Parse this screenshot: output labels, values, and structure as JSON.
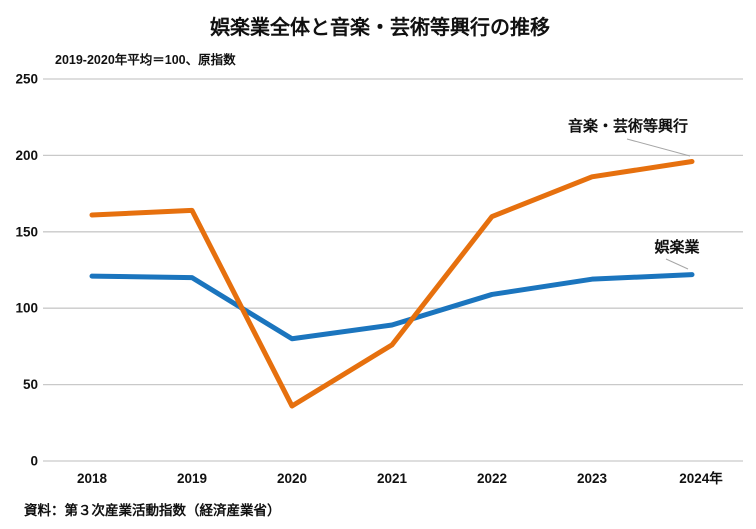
{
  "title": "娯楽業全体と音楽・芸術等興行の推移",
  "subtitle": "2019-2020年平均＝100、原指数",
  "source": "資料：第３次産業活動指数（経済産業省）",
  "colors": {
    "entertainment_line": "#1B75BE",
    "music_arts_line": "#E6700E",
    "gridline": "#C9C9C9",
    "leader_line": "#A6A6A6",
    "text": "#111111"
  },
  "chart_data": {
    "type": "line",
    "categories": [
      "2018",
      "2019",
      "2020",
      "2021",
      "2022",
      "2023",
      "2024年"
    ],
    "series": [
      {
        "id": "entertainment",
        "name": "娯楽業",
        "color": "#1B75BE",
        "values": [
          121,
          120,
          80,
          89,
          109,
          119,
          122
        ]
      },
      {
        "id": "music-arts",
        "name": "音楽・芸術等興行",
        "color": "#E6700E",
        "values": [
          161,
          164,
          36,
          76,
          160,
          186,
          196
        ]
      }
    ],
    "title": "娯楽業全体と音楽・芸術等興行の推移",
    "subtitle": "2019-2020年平均＝100、原指数",
    "xlabel": "",
    "ylabel": "",
    "ylim": [
      0,
      250
    ],
    "yticks": [
      0,
      50,
      100,
      150,
      200,
      250
    ],
    "grid": true,
    "legend_position": "inline-annotations"
  }
}
